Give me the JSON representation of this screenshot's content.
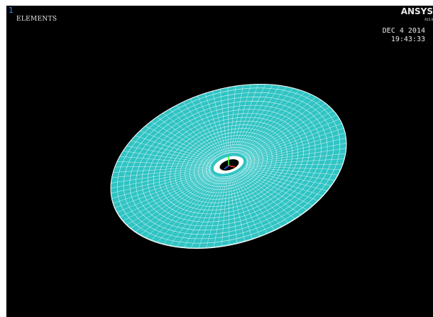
{
  "window": {
    "number": "1",
    "title": "ELEMENTS"
  },
  "brand": {
    "name": "ANSYS",
    "release": "R15.0"
  },
  "timestamp": {
    "date": "DEC  4 2014",
    "time": "19:43:33"
  },
  "colors": {
    "background": "#000000",
    "element_fill": "#30c4c4",
    "mesh_lines": "#ffffff",
    "window_number": "#3d8bff",
    "triad_x": "#ff3030",
    "triad_y": "#30ff30",
    "triad_z": "#4060ff"
  },
  "model": {
    "type": "annular disc mesh",
    "elements_shown": true
  },
  "icons": {
    "triad": "coordinate-triad-icon"
  }
}
